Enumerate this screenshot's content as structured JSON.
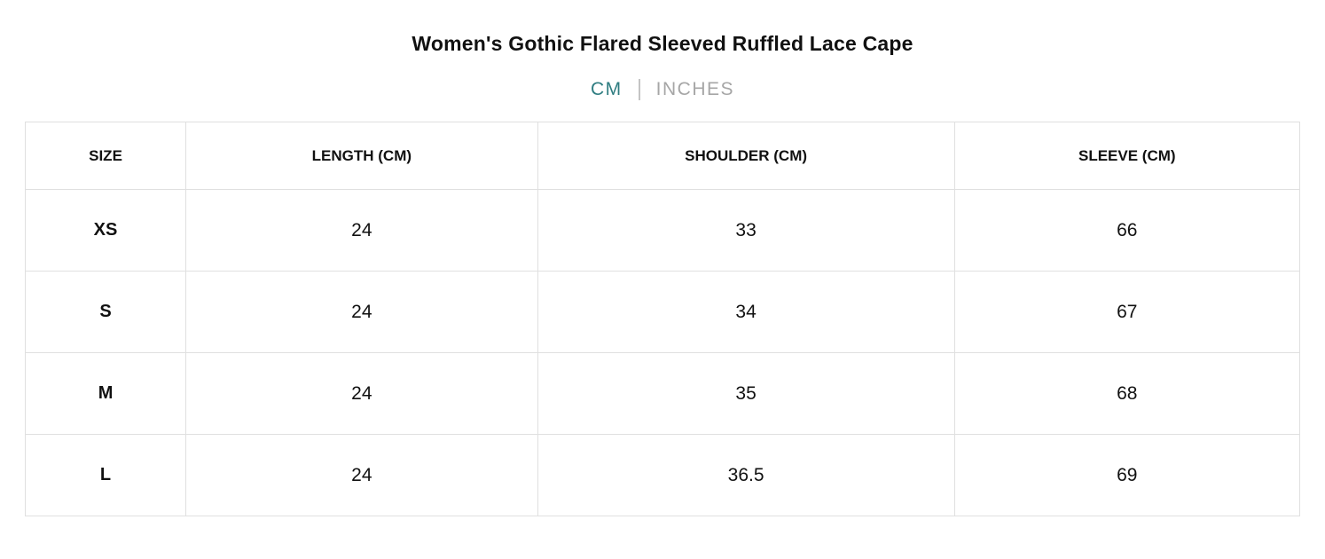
{
  "title": "Women's Gothic Flared Sleeved Ruffled Lace Cape",
  "unit_toggle": {
    "cm_label": "CM",
    "inches_label": "INCHES",
    "active_unit": "CM",
    "active_color": "#2f7d81",
    "inactive_color": "#a6a6a6"
  },
  "table": {
    "headers": [
      "SIZE",
      "LENGTH (CM)",
      "SHOULDER (CM)",
      "SLEEVE (CM)"
    ],
    "rows": [
      [
        "XS",
        "24",
        "33",
        "66"
      ],
      [
        "S",
        "24",
        "34",
        "67"
      ],
      [
        "M",
        "24",
        "35",
        "68"
      ],
      [
        "L",
        "24",
        "36.5",
        "69"
      ]
    ]
  },
  "colors": {
    "border": "#e0e0e0",
    "text": "#111111"
  }
}
